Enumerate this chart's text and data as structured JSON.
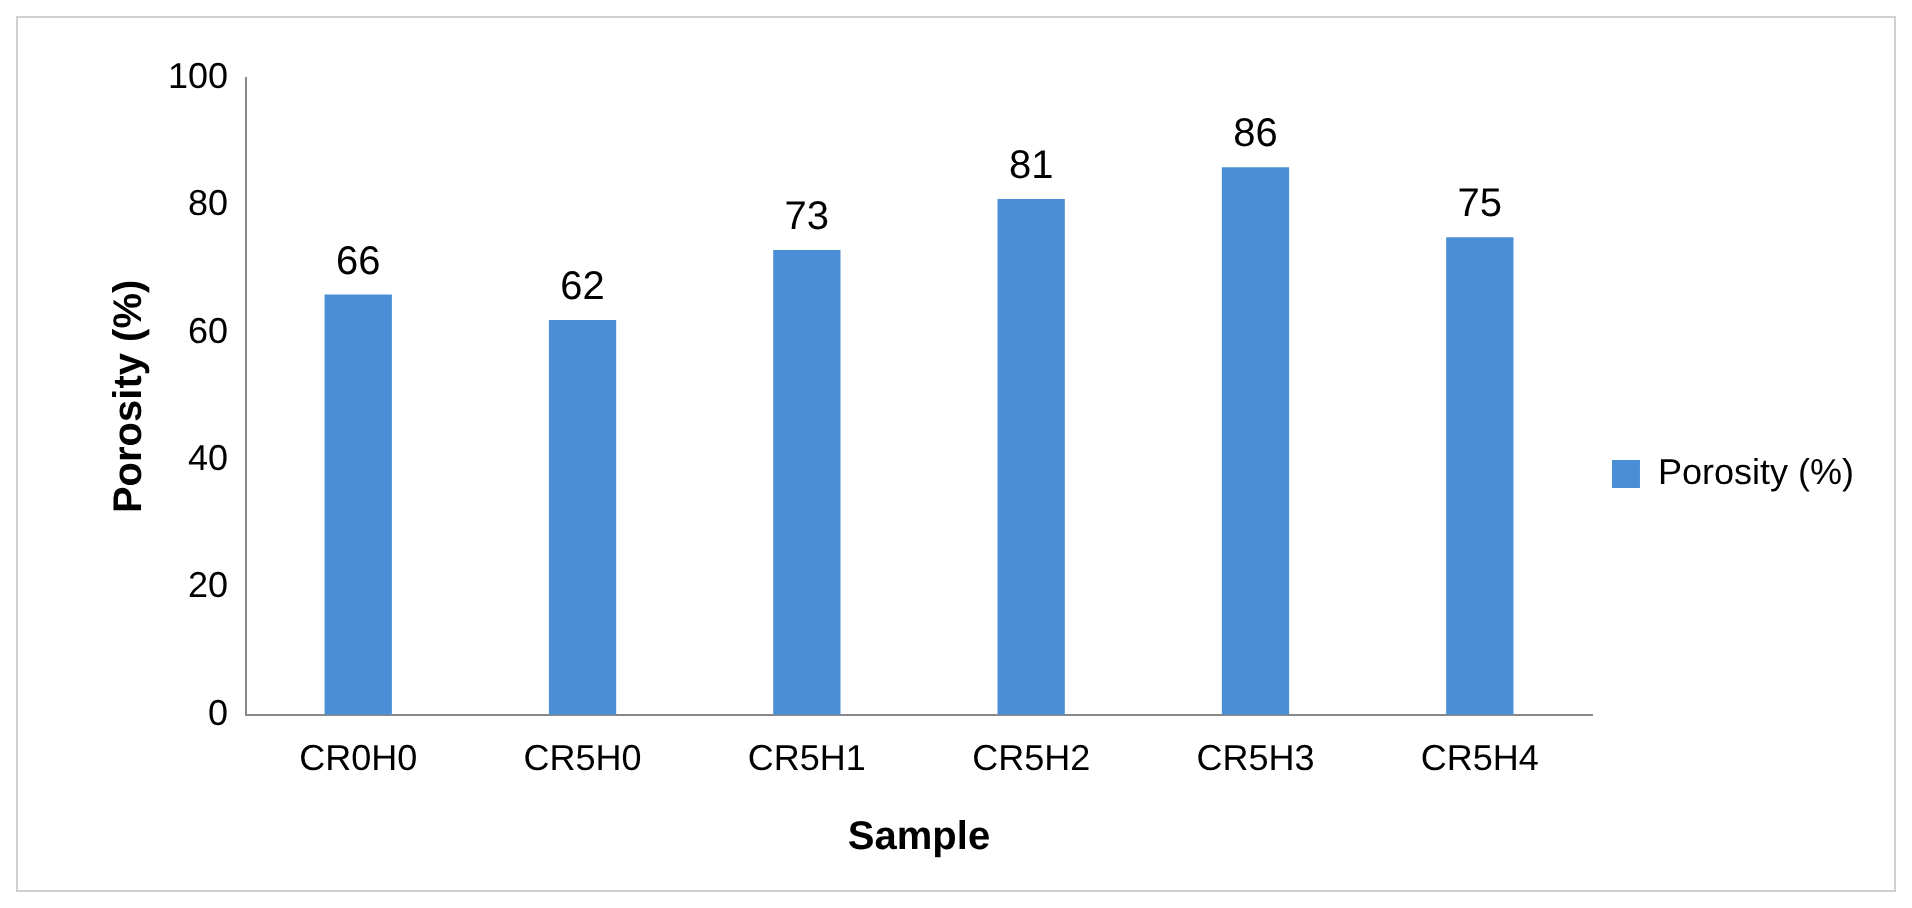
{
  "chart_data": {
    "type": "bar",
    "xlabel": "Sample",
    "ylabel": "Porosity (%)",
    "categories": [
      "CR0H0",
      "CR5H0",
      "CR5H1",
      "CR5H2",
      "CR5H3",
      "CR5H4"
    ],
    "series": [
      {
        "name": "Porosity (%)",
        "color": "#4a8fd6",
        "values": [
          66,
          62,
          73,
          81,
          86,
          75
        ]
      }
    ],
    "ylim": [
      0,
      100
    ],
    "yticks": [
      0,
      20,
      40,
      60,
      80,
      100
    ],
    "grid": false,
    "legend": "right",
    "data_labels": true
  }
}
